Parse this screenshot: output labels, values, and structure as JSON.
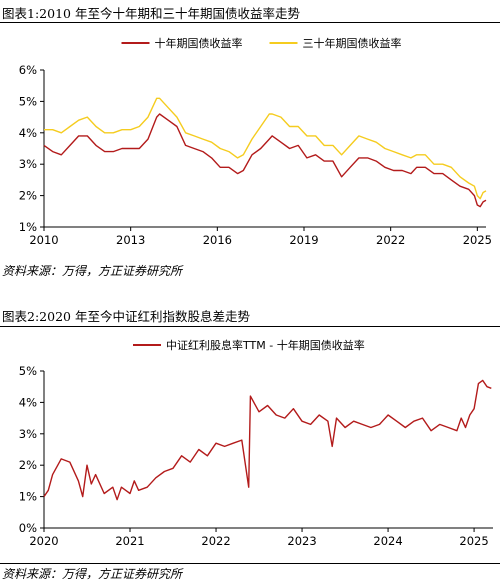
{
  "figures": [
    {
      "title": "图表1:2010 年至今十年期和三十年期国债收益率走势",
      "source": "资料来源：万得，方正证券研究所"
    },
    {
      "title": "图表2:2020 年至今中证红利指数股息差走势",
      "source": "资料来源：万得，方正证券研究所"
    }
  ],
  "colors": {
    "series_red": "#b31b1b",
    "series_yellow": "#f5cc1f",
    "axis": "#000000"
  },
  "chart_data": [
    {
      "type": "line",
      "title": "",
      "xlabel": "",
      "ylabel": "",
      "xlim": [
        2010,
        2025.3
      ],
      "ylim": [
        1,
        6
      ],
      "x_ticks": [
        "2010",
        "2013",
        "2016",
        "2019",
        "2022",
        "2025"
      ],
      "y_ticks": [
        "1%",
        "2%",
        "3%",
        "4%",
        "5%",
        "6%"
      ],
      "legend": "top-center",
      "series": [
        {
          "name": "十年期国债收益率",
          "color": "#b31b1b",
          "x": [
            2010.0,
            2010.3,
            2010.6,
            2010.9,
            2011.2,
            2011.5,
            2011.8,
            2012.1,
            2012.4,
            2012.7,
            2013.0,
            2013.3,
            2013.6,
            2013.9,
            2014.0,
            2014.3,
            2014.6,
            2014.9,
            2015.2,
            2015.5,
            2015.8,
            2016.1,
            2016.4,
            2016.7,
            2016.9,
            2017.2,
            2017.5,
            2017.8,
            2017.9,
            2018.2,
            2018.5,
            2018.8,
            2019.1,
            2019.4,
            2019.7,
            2020.0,
            2020.3,
            2020.6,
            2020.9,
            2021.2,
            2021.5,
            2021.8,
            2022.1,
            2022.4,
            2022.7,
            2022.9,
            2023.2,
            2023.5,
            2023.8,
            2024.1,
            2024.4,
            2024.7,
            2024.9,
            2025.0,
            2025.1,
            2025.2,
            2025.3
          ],
          "y": [
            3.6,
            3.4,
            3.3,
            3.6,
            3.9,
            3.9,
            3.6,
            3.4,
            3.4,
            3.5,
            3.5,
            3.5,
            3.8,
            4.5,
            4.6,
            4.4,
            4.2,
            3.6,
            3.5,
            3.4,
            3.2,
            2.9,
            2.9,
            2.7,
            2.8,
            3.3,
            3.5,
            3.8,
            3.9,
            3.7,
            3.5,
            3.6,
            3.2,
            3.3,
            3.1,
            3.1,
            2.6,
            2.9,
            3.2,
            3.2,
            3.1,
            2.9,
            2.8,
            2.8,
            2.7,
            2.9,
            2.9,
            2.7,
            2.7,
            2.5,
            2.3,
            2.2,
            2.0,
            1.7,
            1.65,
            1.8,
            1.85
          ]
        },
        {
          "name": "三十年期国债收益率",
          "color": "#f5cc1f",
          "x": [
            2010.0,
            2010.3,
            2010.6,
            2010.9,
            2011.2,
            2011.5,
            2011.8,
            2012.1,
            2012.4,
            2012.7,
            2013.0,
            2013.3,
            2013.6,
            2013.9,
            2014.0,
            2014.3,
            2014.6,
            2014.9,
            2015.2,
            2015.5,
            2015.8,
            2016.1,
            2016.4,
            2016.7,
            2016.9,
            2017.2,
            2017.5,
            2017.8,
            2017.9,
            2018.2,
            2018.5,
            2018.8,
            2019.1,
            2019.4,
            2019.7,
            2020.0,
            2020.3,
            2020.6,
            2020.9,
            2021.2,
            2021.5,
            2021.8,
            2022.1,
            2022.4,
            2022.7,
            2022.9,
            2023.2,
            2023.5,
            2023.8,
            2024.1,
            2024.4,
            2024.7,
            2024.9,
            2025.0,
            2025.1,
            2025.2,
            2025.3
          ],
          "y": [
            4.1,
            4.1,
            4.0,
            4.2,
            4.4,
            4.5,
            4.2,
            4.0,
            4.0,
            4.1,
            4.1,
            4.2,
            4.5,
            5.1,
            5.1,
            4.8,
            4.5,
            4.0,
            3.9,
            3.8,
            3.7,
            3.5,
            3.4,
            3.2,
            3.3,
            3.8,
            4.2,
            4.6,
            4.6,
            4.5,
            4.2,
            4.2,
            3.9,
            3.9,
            3.6,
            3.6,
            3.3,
            3.6,
            3.9,
            3.8,
            3.7,
            3.5,
            3.4,
            3.3,
            3.2,
            3.3,
            3.3,
            3.0,
            3.0,
            2.9,
            2.6,
            2.4,
            2.3,
            2.0,
            1.9,
            2.1,
            2.15
          ]
        }
      ]
    },
    {
      "type": "line",
      "title": "",
      "xlabel": "",
      "ylabel": "",
      "xlim": [
        2020,
        2025.22
      ],
      "ylim": [
        0,
        5
      ],
      "x_ticks": [
        "2020",
        "2021",
        "2022",
        "2023",
        "2024",
        "2025"
      ],
      "y_ticks": [
        "0%",
        "1%",
        "2%",
        "3%",
        "4%",
        "5%"
      ],
      "legend": "top-center",
      "series": [
        {
          "name": "中证红利股息率TTM - 十年期国债收益率",
          "color": "#b31b1b",
          "x": [
            2020.0,
            2020.05,
            2020.1,
            2020.2,
            2020.3,
            2020.4,
            2020.45,
            2020.5,
            2020.55,
            2020.6,
            2020.7,
            2020.8,
            2020.85,
            2020.9,
            2021.0,
            2021.05,
            2021.1,
            2021.2,
            2021.3,
            2021.4,
            2021.5,
            2021.6,
            2021.7,
            2021.8,
            2021.9,
            2022.0,
            2022.1,
            2022.2,
            2022.3,
            2022.38,
            2022.4,
            2022.5,
            2022.6,
            2022.7,
            2022.8,
            2022.9,
            2023.0,
            2023.1,
            2023.2,
            2023.3,
            2023.35,
            2023.4,
            2023.5,
            2023.6,
            2023.7,
            2023.8,
            2023.9,
            2024.0,
            2024.1,
            2024.2,
            2024.3,
            2024.4,
            2024.5,
            2024.6,
            2024.7,
            2024.8,
            2024.85,
            2024.9,
            2024.95,
            2025.0,
            2025.05,
            2025.1,
            2025.15,
            2025.2
          ],
          "y": [
            1.0,
            1.2,
            1.7,
            2.2,
            2.1,
            1.5,
            1.0,
            2.0,
            1.4,
            1.7,
            1.1,
            1.3,
            0.9,
            1.3,
            1.1,
            1.5,
            1.2,
            1.3,
            1.6,
            1.8,
            1.9,
            2.3,
            2.1,
            2.5,
            2.3,
            2.7,
            2.6,
            2.7,
            2.8,
            1.3,
            4.2,
            3.7,
            3.9,
            3.6,
            3.5,
            3.8,
            3.4,
            3.3,
            3.6,
            3.4,
            2.6,
            3.5,
            3.2,
            3.4,
            3.3,
            3.2,
            3.3,
            3.6,
            3.4,
            3.2,
            3.4,
            3.5,
            3.1,
            3.3,
            3.2,
            3.1,
            3.5,
            3.2,
            3.6,
            3.8,
            4.6,
            4.7,
            4.5,
            4.45
          ]
        }
      ]
    }
  ]
}
